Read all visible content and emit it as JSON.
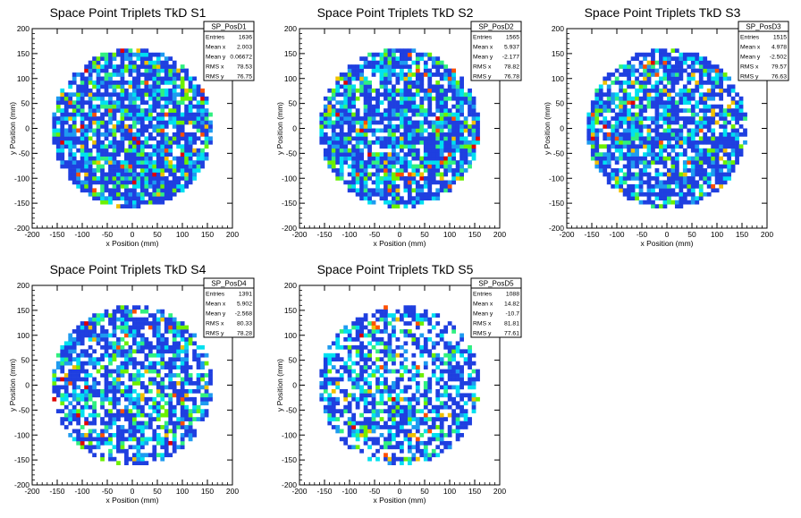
{
  "colors": {
    "frame": "#000000",
    "palette": [
      "#1F3FE0",
      "#1E9BF0",
      "#00E0F0",
      "#30F080",
      "#6CF000",
      "#F0C000",
      "#FF5000",
      "#E00000"
    ]
  },
  "chart_data": [
    {
      "type": "heatmap",
      "title": "Space Point Triplets TkD S1",
      "xlabel": "x Position (mm)",
      "ylabel": "y Position (mm)",
      "xlim": [
        -200,
        200
      ],
      "ylim": [
        -200,
        200
      ],
      "xticks": [
        -200,
        -150,
        -100,
        -50,
        0,
        50,
        100,
        150,
        200
      ],
      "yticks": [
        -200,
        -150,
        -100,
        -50,
        0,
        50,
        100,
        150,
        200
      ],
      "disk_radius": 160,
      "bin_size": 8,
      "seed": 11,
      "fill": 0.84,
      "stats": {
        "name": "SP_PosD1",
        "rows": [
          {
            "label": "Entries",
            "value": "1636"
          },
          {
            "label": "Mean x",
            "value": "2.003"
          },
          {
            "label": "Mean y",
            "value": "0.06672"
          },
          {
            "label": "RMS x",
            "value": "78.53"
          },
          {
            "label": "RMS y",
            "value": "76.75"
          }
        ]
      }
    },
    {
      "type": "heatmap",
      "title": "Space Point Triplets TkD S2",
      "xlabel": "x Position (mm)",
      "ylabel": "y Position (mm)",
      "xlim": [
        -200,
        200
      ],
      "ylim": [
        -200,
        200
      ],
      "xticks": [
        -200,
        -150,
        -100,
        -50,
        0,
        50,
        100,
        150,
        200
      ],
      "yticks": [
        -200,
        -150,
        -100,
        -50,
        0,
        50,
        100,
        150,
        200
      ],
      "disk_radius": 160,
      "bin_size": 8,
      "seed": 23,
      "fill": 0.8,
      "stats": {
        "name": "SP_PosD2",
        "rows": [
          {
            "label": "Entries",
            "value": "1565"
          },
          {
            "label": "Mean x",
            "value": "5.937"
          },
          {
            "label": "Mean y",
            "value": "-2.177"
          },
          {
            "label": "RMS x",
            "value": "78.82"
          },
          {
            "label": "RMS y",
            "value": "76.78"
          }
        ]
      }
    },
    {
      "type": "heatmap",
      "title": "Space Point Triplets TkD S3",
      "xlabel": "x Position (mm)",
      "ylabel": "y Position (mm)",
      "xlim": [
        -200,
        200
      ],
      "ylim": [
        -200,
        200
      ],
      "xticks": [
        -200,
        -150,
        -100,
        -50,
        0,
        50,
        100,
        150,
        200
      ],
      "yticks": [
        -200,
        -150,
        -100,
        -50,
        0,
        50,
        100,
        150,
        200
      ],
      "disk_radius": 160,
      "bin_size": 8,
      "seed": 37,
      "fill": 0.78,
      "stats": {
        "name": "SP_PosD3",
        "rows": [
          {
            "label": "Entries",
            "value": "1515"
          },
          {
            "label": "Mean x",
            "value": "4.978"
          },
          {
            "label": "Mean y",
            "value": "-2.502"
          },
          {
            "label": "RMS x",
            "value": "79.57"
          },
          {
            "label": "RMS y",
            "value": "76.63"
          }
        ]
      }
    },
    {
      "type": "heatmap",
      "title": "Space Point Triplets TkD S4",
      "xlabel": "x Position (mm)",
      "ylabel": "y Position (mm)",
      "xlim": [
        -200,
        200
      ],
      "ylim": [
        -200,
        200
      ],
      "xticks": [
        -200,
        -150,
        -100,
        -50,
        0,
        50,
        100,
        150,
        200
      ],
      "yticks": [
        -200,
        -150,
        -100,
        -50,
        0,
        50,
        100,
        150,
        200
      ],
      "disk_radius": 160,
      "bin_size": 8,
      "seed": 41,
      "fill": 0.72,
      "stats": {
        "name": "SP_PosD4",
        "rows": [
          {
            "label": "Entries",
            "value": "1391"
          },
          {
            "label": "Mean x",
            "value": "5.902"
          },
          {
            "label": "Mean y",
            "value": "-2.568"
          },
          {
            "label": "RMS x",
            "value": "80.33"
          },
          {
            "label": "RMS y",
            "value": "78.28"
          }
        ]
      }
    },
    {
      "type": "heatmap",
      "title": "Space Point Triplets TkD S5",
      "xlabel": "x Position (mm)",
      "ylabel": "y Position (mm)",
      "xlim": [
        -200,
        200
      ],
      "ylim": [
        -200,
        200
      ],
      "xticks": [
        -200,
        -150,
        -100,
        -50,
        0,
        50,
        100,
        150,
        200
      ],
      "yticks": [
        -200,
        -150,
        -100,
        -50,
        0,
        50,
        100,
        150,
        200
      ],
      "disk_radius": 160,
      "bin_size": 8,
      "seed": 53,
      "fill": 0.6,
      "stats": {
        "name": "SP_PosD5",
        "rows": [
          {
            "label": "Entries",
            "value": "1088"
          },
          {
            "label": "Mean x",
            "value": "14.82"
          },
          {
            "label": "Mean y",
            "value": "-10.7"
          },
          {
            "label": "RMS x",
            "value": "81.81"
          },
          {
            "label": "RMS y",
            "value": "77.61"
          }
        ]
      }
    }
  ]
}
